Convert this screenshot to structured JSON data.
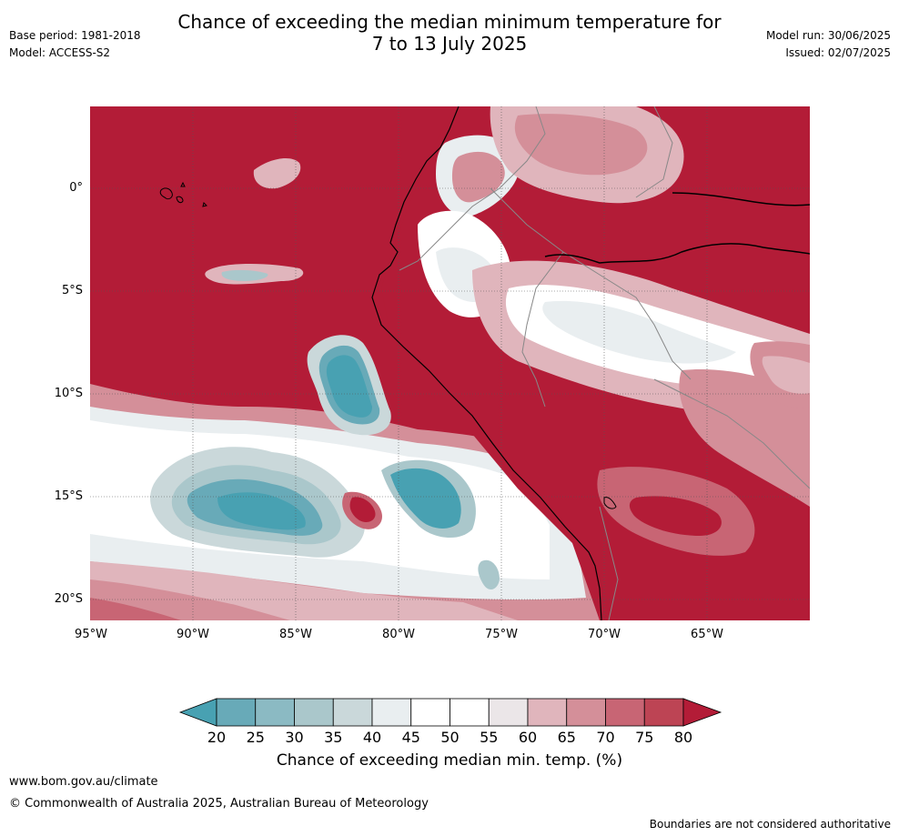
{
  "header": {
    "title_line1": "Chance of exceeding the median minimum temperature for",
    "title_line2": "7 to 13 July 2025",
    "base_period": "Base period: 1981-2018",
    "model": "Model: ACCESS-S2",
    "model_run": "Model run: 30/06/2025",
    "issued": "Issued: 02/07/2025"
  },
  "map": {
    "lat_labels": [
      "0°",
      "5°S",
      "10°S",
      "15°S",
      "20°S"
    ],
    "lon_labels": [
      "95°W",
      "90°W",
      "85°W",
      "80°W",
      "75°W",
      "70°W",
      "65°W"
    ]
  },
  "colorbar": {
    "ticks": [
      "20",
      "25",
      "30",
      "35",
      "40",
      "45",
      "50",
      "55",
      "60",
      "65",
      "70",
      "75",
      "80"
    ],
    "colors": [
      "#48a1b2",
      "#68aab8",
      "#8bbac3",
      "#aac7cb",
      "#cad8da",
      "#e9eef0",
      "#ffffff",
      "#ffffff",
      "#ebe6e8",
      "#e0b5bc",
      "#d48f99",
      "#c86574",
      "#bd4454",
      "#b31c37"
    ],
    "label": "Chance of exceeding median min. temp. (%)"
  },
  "footer": {
    "url": "www.bom.gov.au/climate",
    "copyright": "© Commonwealth of Australia 2025, Australian Bureau of Meteorology",
    "disclaimer": "Boundaries are not considered authoritative"
  }
}
